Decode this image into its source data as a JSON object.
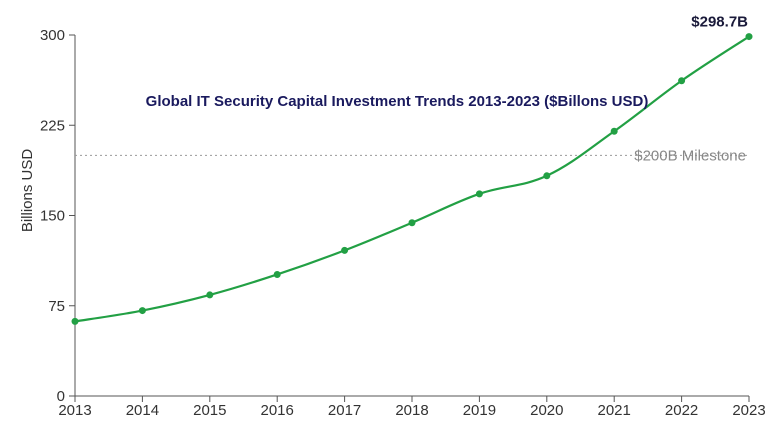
{
  "chart_data": {
    "type": "line",
    "title": "Global IT Security Capital Investment Trends 2013-2023 ($Billons USD)",
    "xlabel": "",
    "ylabel": "Billions USD",
    "x": [
      "2013",
      "2014",
      "2015",
      "2016",
      "2017",
      "2018",
      "2019",
      "2020",
      "2021",
      "2022",
      "2023"
    ],
    "series": [
      {
        "values": [
          62,
          71,
          84,
          101,
          121,
          144,
          168,
          183,
          220,
          262,
          298.7
        ],
        "color": "#22a044"
      }
    ],
    "ylim": [
      0,
      300
    ],
    "yticks": [
      "0",
      "75",
      "150",
      "225",
      "300"
    ],
    "grid": false,
    "reference_line": {
      "value": 200,
      "label": "$200B Milestone",
      "color": "#999999"
    },
    "end_label": "$298.7B"
  }
}
